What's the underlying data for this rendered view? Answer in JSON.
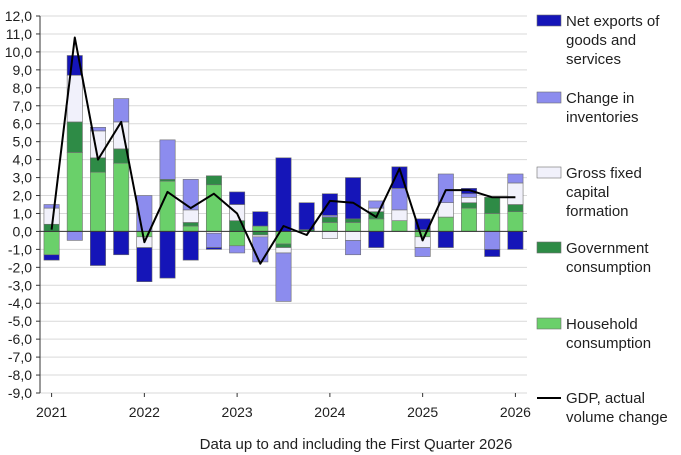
{
  "chart_data": {
    "type": "bar",
    "stacked": true,
    "categories": [
      "2021 Q1",
      "2021 Q2",
      "2021 Q3",
      "2021 Q4",
      "2022 Q1",
      "2022 Q2",
      "2022 Q3",
      "2022 Q4",
      "2023 Q1",
      "2023 Q2",
      "2023 Q3",
      "2023 Q4",
      "2024 Q1",
      "2024 Q2",
      "2024 Q3",
      "2024 Q4",
      "2025 Q1",
      "2025 Q2",
      "2025 Q3",
      "2025 Q4",
      "2026 Q1"
    ],
    "x_tick_labels": [
      {
        "label": "2021",
        "index": 0
      },
      {
        "label": "2022",
        "index": 4
      },
      {
        "label": "2023",
        "index": 8
      },
      {
        "label": "2024",
        "index": 12
      },
      {
        "label": "2025",
        "index": 16
      },
      {
        "label": "2026",
        "index": 20
      }
    ],
    "y_tick_labels": [
      "12,0",
      "11,0",
      "10,0",
      "9,0",
      "8,0",
      "7,0",
      "6,0",
      "5,0",
      "4,0",
      "3,0",
      "2,0",
      "1,0",
      "0,0",
      "-1,0",
      "-2,0",
      "-3,0",
      "-4,0",
      "-5,0",
      "-6,0",
      "-7,0",
      "-8,0",
      "-9,0"
    ],
    "ylim": [
      -9,
      12
    ],
    "ystep": 1,
    "grid": "horizontal",
    "legend_position": "right",
    "xlabel": "Data up to and including the First Quarter 2026",
    "series": [
      {
        "name": "Household consumption",
        "color": "#6ad06a",
        "values": [
          -1.3,
          4.4,
          3.3,
          3.8,
          -0.3,
          2.8,
          0.3,
          2.6,
          -0.8,
          0.3,
          -0.7,
          0.0,
          0.5,
          0.5,
          0.7,
          0.6,
          -0.3,
          0.8,
          1.3,
          1.0,
          1.1
        ]
      },
      {
        "name": "Government consumption",
        "color": "#2e8b46",
        "values": [
          0.4,
          1.7,
          0.8,
          0.8,
          0.0,
          0.1,
          0.2,
          0.5,
          0.6,
          -0.2,
          -0.2,
          0.1,
          0.3,
          0.2,
          0.4,
          0.0,
          0.1,
          0.0,
          0.3,
          0.9,
          0.4
        ]
      },
      {
        "name": "Gross fixed capital formation",
        "color": "#f1f1fb",
        "values": [
          0.9,
          2.6,
          1.5,
          1.5,
          -0.6,
          0.0,
          0.7,
          -0.1,
          0.9,
          -0.1,
          -0.3,
          0.0,
          -0.4,
          -0.5,
          0.2,
          0.6,
          -0.6,
          0.8,
          0.3,
          0.0,
          1.2
        ]
      },
      {
        "name": "Change in inventories",
        "color": "#8c8cee",
        "values": [
          0.2,
          -0.5,
          0.2,
          1.3,
          2.0,
          2.2,
          1.7,
          -0.8,
          -0.4,
          -1.4,
          -2.7,
          0.0,
          0.1,
          -0.8,
          0.4,
          1.2,
          -0.5,
          1.6,
          0.2,
          -1.0,
          0.5
        ]
      },
      {
        "name": "Net exports of goods and services",
        "color": "#1515b8",
        "values": [
          -0.3,
          1.1,
          -1.9,
          -1.3,
          -1.9,
          -2.6,
          -1.6,
          -0.1,
          0.7,
          0.8,
          4.1,
          1.5,
          1.2,
          2.3,
          -0.9,
          1.2,
          0.6,
          -0.9,
          0.3,
          -0.4,
          -1.0
        ]
      }
    ],
    "line": {
      "name": "GDP, actual volume change",
      "color": "#000000",
      "values": [
        0.1,
        10.8,
        4.0,
        6.1,
        -0.6,
        2.2,
        1.3,
        2.1,
        1.0,
        -1.8,
        0.3,
        -0.2,
        1.7,
        1.6,
        0.8,
        3.5,
        -0.5,
        2.3,
        2.3,
        1.9,
        1.9
      ]
    }
  }
}
